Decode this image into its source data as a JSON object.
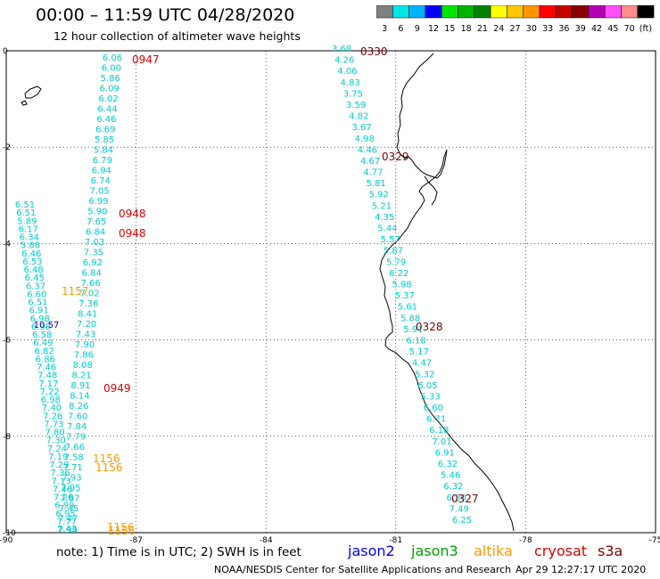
{
  "header": {
    "title": "00:00 – 11:59 UTC 04/28/2020",
    "subtitle": "12 hour collection of altimeter wave heights"
  },
  "colorbar": {
    "labels": [
      "3",
      "6",
      "9",
      "12",
      "15",
      "18",
      "21",
      "24",
      "27",
      "30",
      "33",
      "36",
      "39",
      "42",
      "45",
      "70",
      "(ft)"
    ],
    "colors": [
      "#808080",
      "#00e5e5",
      "#00b4ff",
      "#0000ff",
      "#00e600",
      "#00b400",
      "#008200",
      "#ffff00",
      "#ffc800",
      "#ff9600",
      "#ff0000",
      "#c80000",
      "#8b0000",
      "#b400b4",
      "#ff50ff",
      "#ff8c8c",
      "#000000"
    ]
  },
  "axes": {
    "x_ticks": [
      "-90",
      "-87",
      "-84",
      "-81",
      "-78",
      "-75"
    ],
    "y_ticks": [
      "0",
      "-2",
      "-4",
      "-6",
      "-8",
      "-10"
    ],
    "xlim": [
      -90,
      -75
    ],
    "ylim": [
      -10,
      0
    ]
  },
  "tracks": [
    {
      "color": "#00cccc",
      "values": [
        "6.06",
        "6.00",
        "5.86",
        "6.09",
        "6.02",
        "6.44",
        "6.46",
        "6.69",
        "5.85",
        "5.84",
        "6.79",
        "6.94",
        "6.74",
        "7.05",
        "6.99",
        "5.90",
        "7.65",
        "6.84",
        "7.03",
        "7.35",
        "6.92",
        "6.84",
        "7.66",
        "7.02",
        "7.36",
        "8.41",
        "7.20",
        "7.43",
        "7.90",
        "7.86",
        "8.08",
        "8.21",
        "8.91",
        "8.14",
        "8.26",
        "7.60",
        "7.84",
        "7.79",
        "7.66",
        "7.58",
        "7.71",
        "7.93",
        "7.95",
        "7.87",
        "7.45",
        "7.47",
        "7.43"
      ]
    },
    {
      "color": "#00cccc",
      "values": [
        "6.51",
        "6.51",
        "5.89",
        "6.17",
        "6.34",
        "5.88",
        "6.46",
        "6.53",
        "6.48",
        "6.45",
        "6.37",
        "6.60",
        "6.51",
        "6.91",
        "6.98",
        "6.98",
        "6.58",
        "6.49",
        "6.82",
        "6.86",
        "7.46",
        "7.48",
        "7.17",
        "7.22",
        "6.98",
        "7.40",
        "7.26",
        "7.73",
        "7.80",
        "7.30",
        "7.24",
        "7.19",
        "7.29",
        "7.36",
        "7.13",
        "7.46",
        "7.26",
        "6.99",
        "6.95",
        "7.77",
        "7.99"
      ]
    },
    {
      "color": "#0000e0",
      "values": [
        "10.57"
      ]
    },
    {
      "color": "#00cccc",
      "values": [
        "3.68",
        "4.26",
        "4.06",
        "4.83",
        "3.75",
        "3.59",
        "4.82",
        "3.67",
        "4.98",
        "4.46",
        "4.67",
        "4.77",
        "5.81",
        "5.92",
        "5.21",
        "4.35",
        "5.44",
        "5.57",
        "5.87",
        "5.79",
        "6.22",
        "5.98",
        "5.37",
        "5.61",
        "5.88",
        "5.91",
        "6.18",
        "5.17",
        "4.47",
        "5.32",
        "6.05",
        "5.33",
        "6.60",
        "6.71",
        "6.18",
        "7.01",
        "6.91",
        "6.32",
        "5.46",
        "6.32",
        "6.30",
        "7.49",
        "6.25"
      ]
    }
  ],
  "time_labels": [
    {
      "text": "0947",
      "color": "#e00000"
    },
    {
      "text": "0948",
      "color": "#e00000"
    },
    {
      "text": "0948",
      "color": "#e00000"
    },
    {
      "text": "0949",
      "color": "#e00000"
    },
    {
      "text": "1157",
      "color": "#ff9900"
    },
    {
      "text": "1156",
      "color": "#ff9900"
    },
    {
      "text": "1156",
      "color": "#ff9900"
    },
    {
      "text": "1156",
      "color": "#ff9900"
    },
    {
      "text": "1156",
      "color": "#ff9900"
    },
    {
      "text": "0330",
      "color": "#800000"
    },
    {
      "text": "0329",
      "color": "#800000"
    },
    {
      "text": "0328",
      "color": "#800000"
    },
    {
      "text": "0327",
      "color": "#800000"
    }
  ],
  "note": "note:  1) Time is in UTC;  2) SWH is in feet",
  "legend": [
    {
      "label": "jason2",
      "color": "#0000ff"
    },
    {
      "label": "jason3",
      "color": "#00a000"
    },
    {
      "label": "altika",
      "color": "#ff9900"
    },
    {
      "label": "cryosat",
      "color": "#e00000"
    },
    {
      "label": "s3a",
      "color": "#800000"
    }
  ],
  "footer": {
    "credit": "NOAA/NESDIS Center for Satellite Applications and Research",
    "timestamp": "Apr 29 12:27:17 UTC 2020"
  }
}
